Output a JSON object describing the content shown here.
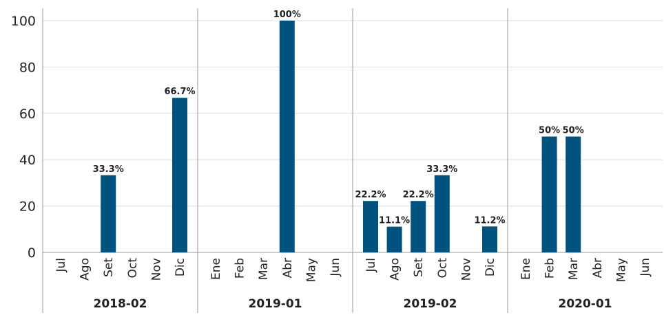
{
  "chart_data": {
    "type": "bar",
    "color": "#00527f",
    "grid": true,
    "ylim": [
      0,
      100
    ],
    "yticks": [
      0,
      20,
      40,
      60,
      80,
      100
    ],
    "groups": [
      {
        "name": "2018-02",
        "categories": [
          "Jul",
          "Ago",
          "Set",
          "Oct",
          "Nov",
          "Dic"
        ],
        "values": [
          null,
          null,
          33.3,
          null,
          null,
          66.7
        ],
        "value_labels": [
          null,
          null,
          "33.3%",
          null,
          null,
          "66.7%"
        ]
      },
      {
        "name": "2019-01",
        "categories": [
          "Ene",
          "Feb",
          "Mar",
          "Abr",
          "May",
          "Jun"
        ],
        "values": [
          null,
          null,
          null,
          100,
          null,
          null
        ],
        "value_labels": [
          null,
          null,
          null,
          "100%",
          null,
          null
        ]
      },
      {
        "name": "2019-02",
        "categories": [
          "Jul",
          "Ago",
          "Set",
          "Oct",
          "Nov",
          "Dic"
        ],
        "values": [
          22.2,
          11.1,
          22.2,
          33.3,
          null,
          11.2
        ],
        "value_labels": [
          "22.2%",
          "11.1%",
          "22.2%",
          "33.3%",
          null,
          "11.2%"
        ]
      },
      {
        "name": "2020-01",
        "categories": [
          "Ene",
          "Feb",
          "Mar",
          "Abr",
          "May",
          "Jun"
        ],
        "values": [
          null,
          50,
          50,
          null,
          null,
          null
        ],
        "value_labels": [
          null,
          "50%",
          "50%",
          null,
          null,
          null
        ]
      }
    ]
  }
}
